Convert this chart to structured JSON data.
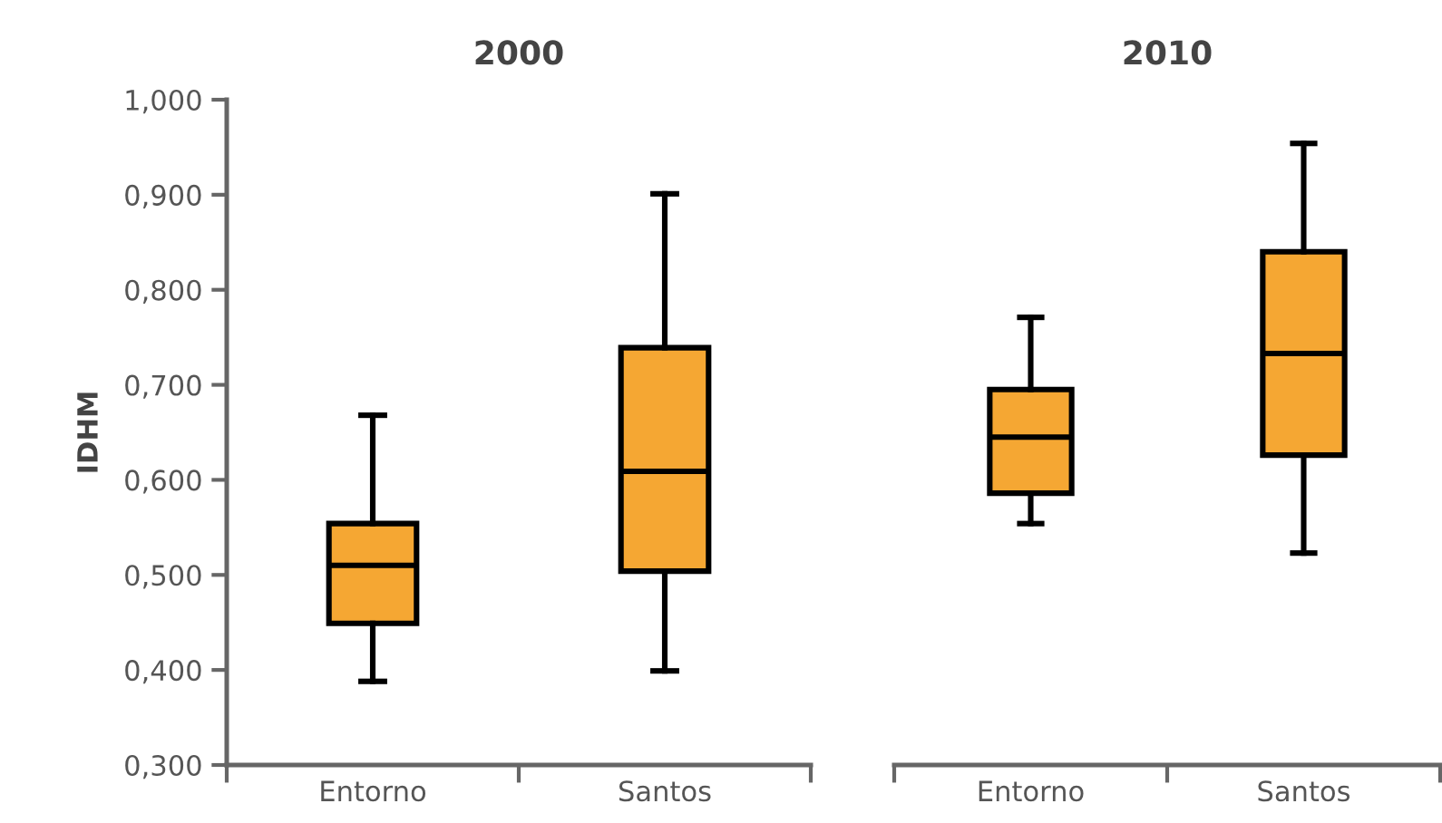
{
  "chart_data": [
    {
      "type": "box",
      "title": "2000",
      "ylabel": "IDHM",
      "categories": [
        "Entorno",
        "Santos"
      ],
      "ylim": [
        0.3,
        1.0
      ],
      "yticks": [
        {
          "value": 0.3,
          "label": "0,300"
        },
        {
          "value": 0.4,
          "label": "0,400"
        },
        {
          "value": 0.5,
          "label": "0,500"
        },
        {
          "value": 0.6,
          "label": "0,600"
        },
        {
          "value": 0.7,
          "label": "0,700"
        },
        {
          "value": 0.8,
          "label": "0,800"
        },
        {
          "value": 0.9,
          "label": "0,900"
        },
        {
          "value": 1.0,
          "label": "1,000"
        }
      ],
      "grid": false,
      "legend": false,
      "series": [
        {
          "color": "#f5a733",
          "boxes": [
            {
              "low": 0.388,
              "q1": 0.449,
              "median": 0.51,
              "q3": 0.554,
              "high": 0.668
            },
            {
              "low": 0.399,
              "q1": 0.504,
              "median": 0.609,
              "q3": 0.739,
              "high": 0.901
            }
          ]
        }
      ]
    },
    {
      "type": "box",
      "title": "2010",
      "categories": [
        "Entorno",
        "Santos"
      ],
      "ylim": [
        0.3,
        1.0
      ],
      "tick_labels": "x",
      "grid": false,
      "legend": false,
      "series": [
        {
          "color": "#f5a733",
          "boxes": [
            {
              "low": 0.554,
              "q1": 0.586,
              "median": 0.645,
              "q3": 0.695,
              "high": 0.771
            },
            {
              "low": 0.523,
              "q1": 0.626,
              "median": 0.733,
              "q3": 0.84,
              "high": 0.954
            }
          ]
        }
      ]
    }
  ]
}
